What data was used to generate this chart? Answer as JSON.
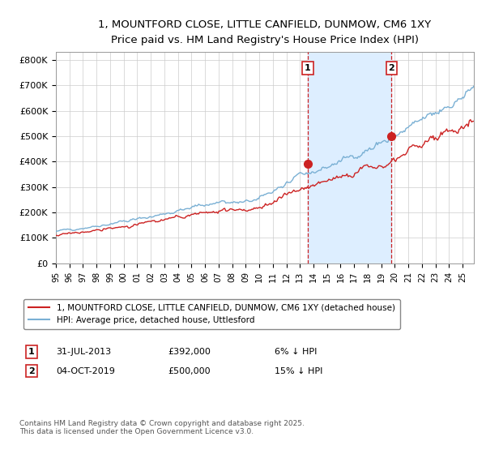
{
  "title_line1": "1, MOUNTFORD CLOSE, LITTLE CANFIELD, DUNMOW, CM6 1XY",
  "title_line2": "Price paid vs. HM Land Registry's House Price Index (HPI)",
  "ylim": [
    0,
    830000
  ],
  "xlim_start": 1995.0,
  "xlim_end": 2025.83,
  "yticks": [
    0,
    100000,
    200000,
    300000,
    400000,
    500000,
    600000,
    700000,
    800000
  ],
  "ytick_labels": [
    "£0",
    "£100K",
    "£200K",
    "£300K",
    "£400K",
    "£500K",
    "£600K",
    "£700K",
    "£800K"
  ],
  "hpi_color": "#7ab0d4",
  "price_color": "#cc2222",
  "sale1_date": 2013.58,
  "sale1_price": 392000,
  "sale2_date": 2019.75,
  "sale2_price": 500000,
  "shade_color": "#ddeeff",
  "vline_color": "#cc2222",
  "legend_price_label": "1, MOUNTFORD CLOSE, LITTLE CANFIELD, DUNMOW, CM6 1XY (detached house)",
  "legend_hpi_label": "HPI: Average price, detached house, Uttlesford",
  "note1_date": "31-JUL-2013",
  "note1_price": "£392,000",
  "note1_pct": "6% ↓ HPI",
  "note2_date": "04-OCT-2019",
  "note2_price": "£500,000",
  "note2_pct": "15% ↓ HPI",
  "footer": "Contains HM Land Registry data © Crown copyright and database right 2025.\nThis data is licensed under the Open Government Licence v3.0.",
  "bg_color": "#ffffff",
  "grid_color": "#cccccc"
}
